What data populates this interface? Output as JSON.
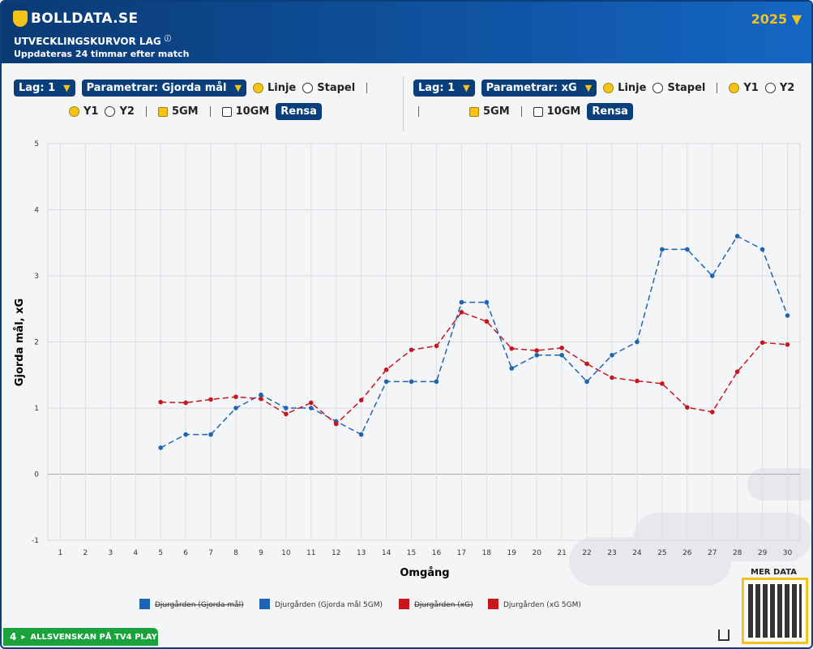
{
  "header": {
    "brand": "BOLLDATA.SE",
    "season": "2025",
    "title": "UTVECKLINGSKURVOR LAG",
    "subtitle": "Uppdateras 24 timmar efter match"
  },
  "controls": {
    "left": {
      "team": "Lag: 1",
      "parameter": "Parametrar: Gjorda mål",
      "line": "Linje",
      "bar": "Stapel",
      "y1": "Y1",
      "y2": "Y2",
      "gm5": "5GM",
      "gm10": "10GM",
      "clear": "Rensa"
    },
    "right": {
      "team": "Lag: 1",
      "parameter": "Parametrar: xG",
      "line": "Linje",
      "bar": "Stapel",
      "y1": "Y1",
      "y2": "Y2",
      "gm5": "5GM",
      "gm10": "10GM",
      "clear": "Rensa"
    }
  },
  "chart_data": {
    "type": "line",
    "x_label": "Omgång",
    "y_label": "Gjorda mål, xG",
    "categories": [
      "1",
      "2",
      "3",
      "4",
      "5",
      "6",
      "7",
      "8",
      "9",
      "10",
      "11",
      "12",
      "13",
      "14",
      "15",
      "16",
      "17",
      "18",
      "19",
      "20",
      "21",
      "22",
      "23",
      "24",
      "25",
      "26",
      "27",
      "28",
      "29",
      "30"
    ],
    "ylim": [
      -1,
      5
    ],
    "yticks": [
      -1,
      0,
      1,
      2,
      3,
      4,
      5
    ],
    "grid": true,
    "series": [
      {
        "name": "Djurgården (Gjorda mål)",
        "color": "#1f64b0",
        "visible": false
      },
      {
        "name": "Djurgården (Gjorda mål 5GM)",
        "color": "#1f64b0",
        "visible": true,
        "values": [
          null,
          null,
          null,
          null,
          0.4,
          0.6,
          0.6,
          1.0,
          1.2,
          1.0,
          1.0,
          0.8,
          0.6,
          1.4,
          1.4,
          1.4,
          2.6,
          2.6,
          1.6,
          1.8,
          1.8,
          1.4,
          1.8,
          2.0,
          3.4,
          3.4,
          3.0,
          3.6,
          3.4,
          2.4
        ]
      },
      {
        "name": "Djurgården (xG)",
        "color": "#c8161d",
        "visible": false
      },
      {
        "name": "Djurgården (xG 5GM)",
        "color": "#c8161d",
        "visible": true,
        "values": [
          null,
          null,
          null,
          null,
          1.09,
          1.08,
          1.13,
          1.17,
          1.14,
          0.91,
          1.08,
          0.76,
          1.12,
          1.58,
          1.88,
          1.94,
          2.45,
          2.31,
          1.9,
          1.87,
          1.91,
          1.67,
          1.46,
          1.41,
          1.37,
          1.01,
          0.94,
          1.55,
          1.99,
          1.96
        ]
      }
    ]
  },
  "footer": {
    "more": "MER DATA",
    "tv": "ALLSVENSKAN PÅ TV4 PLAY",
    "tv_badge": "4"
  }
}
